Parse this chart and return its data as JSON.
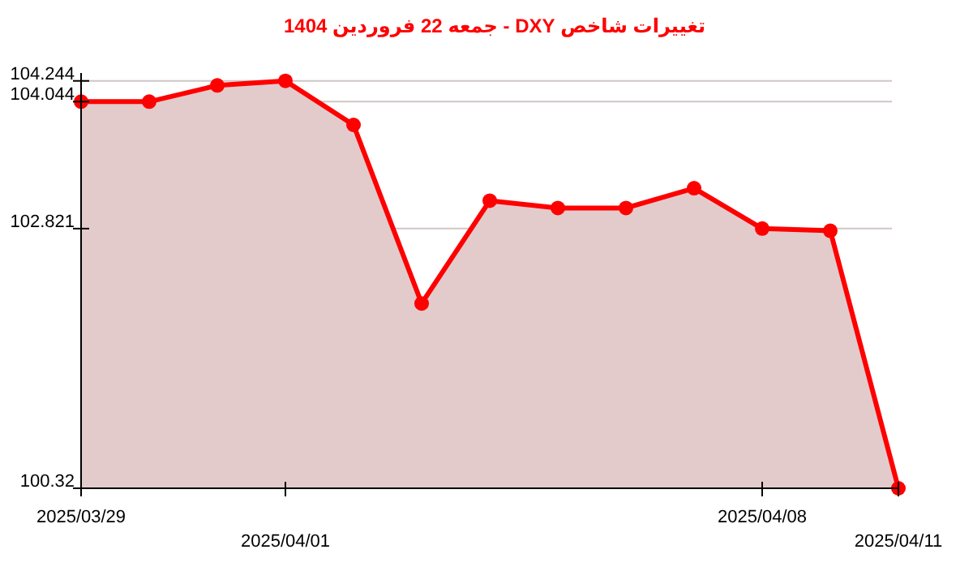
{
  "chart_data": {
    "type": "area",
    "title": "تغییرات شاخص DXY - جمعه  22 فروردین 1404",
    "categories": [
      "2025/03/29",
      null,
      null,
      "2025/04/01",
      null,
      null,
      null,
      null,
      null,
      null,
      "2025/04/08",
      null,
      "2025/04/11"
    ],
    "series": [
      {
        "color": "#ff0000",
        "values": [
          104.044,
          104.044,
          104.2,
          104.244,
          103.82,
          102.1,
          103.09,
          103.02,
          103.02,
          103.21,
          102.821,
          102.8,
          100.32
        ]
      }
    ],
    "ylim": [
      100.32,
      104.32
    ],
    "yticks": [
      100.32,
      102.821,
      104.044,
      104.244
    ],
    "grid": "y",
    "marker": "circle"
  }
}
